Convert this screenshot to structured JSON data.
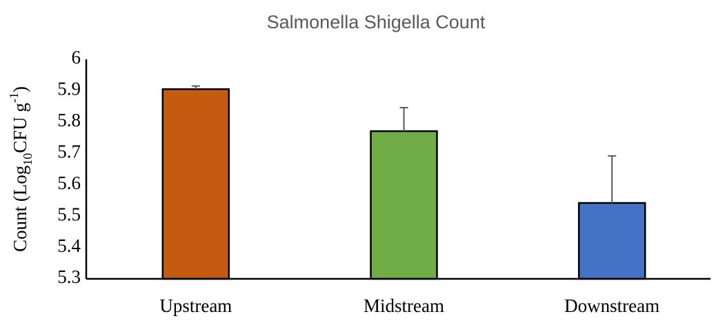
{
  "chart_data": {
    "type": "bar",
    "title": "Salmonella Shigella Count",
    "ylabel_parts": [
      "Count (Log",
      "10",
      "CFU g",
      "-1",
      ")"
    ],
    "categories": [
      "Upstream",
      "Midstream",
      "Downstream"
    ],
    "values": [
      5.905,
      5.771,
      5.542
    ],
    "errors": [
      0.01,
      0.075,
      0.15
    ],
    "colors": [
      "#c55a11",
      "#70ad47",
      "#4472c4"
    ],
    "ylim": [
      5.3,
      6
    ],
    "yticks": [
      5.3,
      5.4,
      5.5,
      5.6,
      5.7,
      5.8,
      5.9,
      6
    ],
    "grid": false
  }
}
